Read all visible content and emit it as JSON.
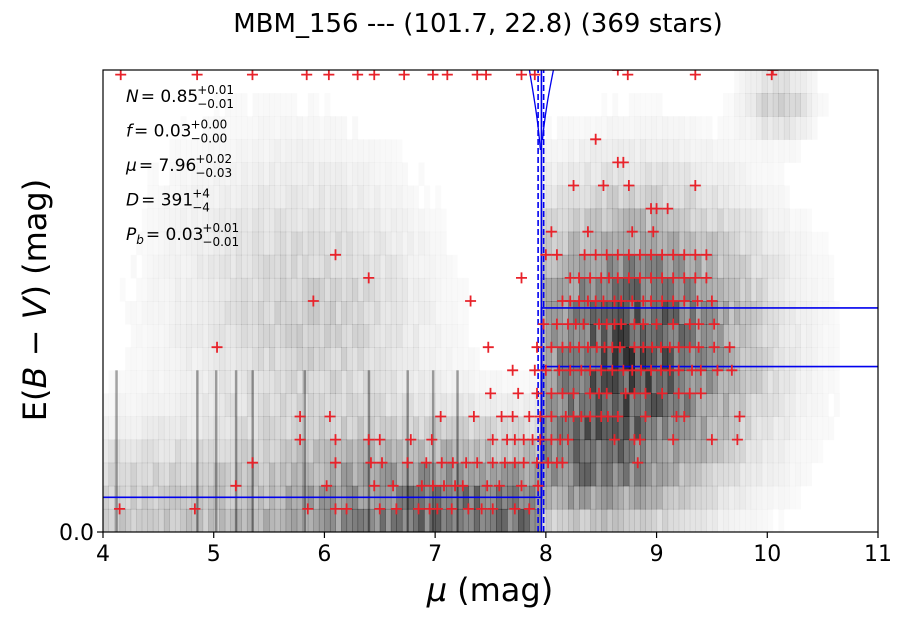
{
  "chart_data": {
    "type": "scatter",
    "title": "MBM_156 --- (101.7, 22.8) (369 stars)",
    "xlabel_symbol": "μ",
    "xlabel_unit": "(mag)",
    "ylabel_pre": "E(",
    "ylabel_b": "B",
    "ylabel_minus": " − ",
    "ylabel_v": "V",
    "ylabel_post": ") (mag)",
    "xlim": [
      4,
      11
    ],
    "ylim": [
      0,
      1
    ],
    "x_ticks": [
      "4",
      "5",
      "6",
      "7",
      "8",
      "9",
      "10",
      "11"
    ],
    "y_ticks": [
      "0.0"
    ],
    "annotations": [
      {
        "name": "N",
        "value": "= 0.85",
        "sup": "+0.01",
        "sub": "−0.01"
      },
      {
        "name": "f",
        "value": "= 0.03",
        "sup": "+0.00",
        "sub": "−0.00"
      },
      {
        "name": "μ",
        "value": "= 7.96",
        "sup": "+0.02",
        "sub": "−0.03"
      },
      {
        "name": "D",
        "value": "= 391",
        "sup": "+4",
        "sub": "−4"
      },
      {
        "name": "P",
        "name_sub": "b",
        "value": "= 0.03",
        "sup": "+0.01",
        "sub": "−0.01"
      }
    ],
    "distance_modulus": 7.96,
    "distance_modulus_lower": 7.93,
    "distance_modulus_upper": 7.98,
    "step_profile": {
      "break_x": 7.96,
      "foreground_y": 0.075,
      "background_y_lower": 0.358,
      "background_y_upper": 0.485
    },
    "marker_color": "#e8222a",
    "line_color": "#0000ee",
    "points": [
      [
        4.16,
        0.99
      ],
      [
        4.85,
        0.99
      ],
      [
        5.35,
        0.99
      ],
      [
        5.84,
        0.99
      ],
      [
        6.04,
        0.99
      ],
      [
        6.3,
        0.99
      ],
      [
        6.45,
        0.99
      ],
      [
        6.72,
        0.99
      ],
      [
        6.98,
        0.99
      ],
      [
        7.11,
        0.99
      ],
      [
        7.38,
        0.99
      ],
      [
        7.46,
        0.99
      ],
      [
        7.78,
        0.99
      ],
      [
        7.9,
        0.99
      ],
      [
        8.74,
        0.99
      ],
      [
        9.35,
        0.99
      ],
      [
        10.04,
        0.99
      ],
      [
        4.15,
        0.05
      ],
      [
        4.83,
        0.05
      ],
      [
        5.85,
        0.05
      ],
      [
        6.1,
        0.05
      ],
      [
        6.2,
        0.05
      ],
      [
        6.5,
        0.05
      ],
      [
        6.65,
        0.05
      ],
      [
        6.85,
        0.05
      ],
      [
        6.95,
        0.05
      ],
      [
        7.02,
        0.05
      ],
      [
        7.15,
        0.05
      ],
      [
        7.3,
        0.05
      ],
      [
        7.42,
        0.05
      ],
      [
        7.52,
        0.05
      ],
      [
        7.72,
        0.05
      ],
      [
        7.85,
        0.05
      ],
      [
        5.2,
        0.1
      ],
      [
        6.02,
        0.1
      ],
      [
        6.45,
        0.1
      ],
      [
        6.62,
        0.1
      ],
      [
        6.88,
        0.1
      ],
      [
        6.98,
        0.1
      ],
      [
        7.08,
        0.1
      ],
      [
        7.18,
        0.1
      ],
      [
        7.25,
        0.1
      ],
      [
        7.47,
        0.1
      ],
      [
        7.58,
        0.1
      ],
      [
        7.78,
        0.1
      ],
      [
        7.93,
        0.1
      ],
      [
        5.35,
        0.15
      ],
      [
        6.1,
        0.15
      ],
      [
        6.42,
        0.15
      ],
      [
        6.52,
        0.15
      ],
      [
        6.75,
        0.15
      ],
      [
        6.92,
        0.15
      ],
      [
        7.06,
        0.15
      ],
      [
        7.16,
        0.15
      ],
      [
        7.28,
        0.15
      ],
      [
        7.38,
        0.15
      ],
      [
        7.52,
        0.15
      ],
      [
        7.63,
        0.15
      ],
      [
        7.72,
        0.15
      ],
      [
        7.8,
        0.15
      ],
      [
        7.92,
        0.15
      ],
      [
        8.02,
        0.15
      ],
      [
        8.1,
        0.15
      ],
      [
        8.15,
        0.15
      ],
      [
        8.83,
        0.15
      ],
      [
        5.78,
        0.2
      ],
      [
        6.1,
        0.2
      ],
      [
        6.4,
        0.2
      ],
      [
        6.5,
        0.2
      ],
      [
        6.78,
        0.2
      ],
      [
        6.97,
        0.2
      ],
      [
        7.52,
        0.2
      ],
      [
        7.65,
        0.2
      ],
      [
        7.72,
        0.2
      ],
      [
        7.8,
        0.2
      ],
      [
        7.88,
        0.2
      ],
      [
        7.95,
        0.2
      ],
      [
        8.05,
        0.2
      ],
      [
        8.13,
        0.2
      ],
      [
        8.2,
        0.2
      ],
      [
        8.62,
        0.2
      ],
      [
        8.8,
        0.2
      ],
      [
        8.85,
        0.2
      ],
      [
        9.15,
        0.2
      ],
      [
        9.5,
        0.2
      ],
      [
        9.73,
        0.2
      ],
      [
        5.78,
        0.25
      ],
      [
        6.05,
        0.25
      ],
      [
        7.05,
        0.25
      ],
      [
        7.35,
        0.25
      ],
      [
        7.6,
        0.25
      ],
      [
        7.7,
        0.25
      ],
      [
        7.85,
        0.25
      ],
      [
        7.95,
        0.25
      ],
      [
        8.05,
        0.25
      ],
      [
        8.18,
        0.25
      ],
      [
        8.25,
        0.25
      ],
      [
        8.32,
        0.25
      ],
      [
        8.4,
        0.25
      ],
      [
        8.5,
        0.25
      ],
      [
        8.56,
        0.25
      ],
      [
        8.65,
        0.25
      ],
      [
        8.9,
        0.25
      ],
      [
        9.18,
        0.25
      ],
      [
        9.25,
        0.25
      ],
      [
        9.75,
        0.25
      ],
      [
        7.5,
        0.3
      ],
      [
        7.75,
        0.3
      ],
      [
        7.92,
        0.3
      ],
      [
        8.05,
        0.3
      ],
      [
        8.15,
        0.3
      ],
      [
        8.25,
        0.3
      ],
      [
        8.4,
        0.3
      ],
      [
        8.48,
        0.3
      ],
      [
        8.55,
        0.3
      ],
      [
        8.72,
        0.3
      ],
      [
        8.8,
        0.3
      ],
      [
        8.9,
        0.3
      ],
      [
        9.05,
        0.3
      ],
      [
        9.2,
        0.3
      ],
      [
        9.3,
        0.3
      ],
      [
        9.4,
        0.3
      ],
      [
        7.7,
        0.35
      ],
      [
        7.9,
        0.35
      ],
      [
        8.0,
        0.35
      ],
      [
        8.12,
        0.35
      ],
      [
        8.22,
        0.35
      ],
      [
        8.32,
        0.35
      ],
      [
        8.4,
        0.35
      ],
      [
        8.5,
        0.35
      ],
      [
        8.6,
        0.35
      ],
      [
        8.7,
        0.35
      ],
      [
        8.78,
        0.35
      ],
      [
        8.86,
        0.35
      ],
      [
        8.95,
        0.35
      ],
      [
        9.04,
        0.35
      ],
      [
        9.12,
        0.35
      ],
      [
        9.2,
        0.35
      ],
      [
        9.32,
        0.35
      ],
      [
        9.4,
        0.35
      ],
      [
        9.55,
        0.35
      ],
      [
        9.68,
        0.35
      ],
      [
        5.03,
        0.4
      ],
      [
        7.48,
        0.4
      ],
      [
        7.92,
        0.4
      ],
      [
        8.05,
        0.4
      ],
      [
        8.15,
        0.4
      ],
      [
        8.22,
        0.4
      ],
      [
        8.3,
        0.4
      ],
      [
        8.38,
        0.4
      ],
      [
        8.46,
        0.4
      ],
      [
        8.53,
        0.4
      ],
      [
        8.6,
        0.4
      ],
      [
        8.67,
        0.4
      ],
      [
        8.8,
        0.4
      ],
      [
        8.88,
        0.4
      ],
      [
        8.96,
        0.4
      ],
      [
        9.04,
        0.4
      ],
      [
        9.12,
        0.4
      ],
      [
        9.2,
        0.4
      ],
      [
        9.3,
        0.4
      ],
      [
        9.38,
        0.4
      ],
      [
        9.52,
        0.4
      ],
      [
        9.66,
        0.4
      ],
      [
        7.98,
        0.45
      ],
      [
        8.1,
        0.45
      ],
      [
        8.2,
        0.45
      ],
      [
        8.27,
        0.45
      ],
      [
        8.34,
        0.45
      ],
      [
        8.48,
        0.45
      ],
      [
        8.55,
        0.45
      ],
      [
        8.62,
        0.45
      ],
      [
        8.68,
        0.45
      ],
      [
        8.8,
        0.45
      ],
      [
        8.88,
        0.45
      ],
      [
        9.0,
        0.45
      ],
      [
        9.15,
        0.45
      ],
      [
        9.3,
        0.45
      ],
      [
        9.38,
        0.45
      ],
      [
        9.52,
        0.45
      ],
      [
        5.9,
        0.5
      ],
      [
        7.32,
        0.5
      ],
      [
        8.15,
        0.5
      ],
      [
        8.22,
        0.5
      ],
      [
        8.3,
        0.5
      ],
      [
        8.38,
        0.5
      ],
      [
        8.45,
        0.5
      ],
      [
        8.52,
        0.5
      ],
      [
        8.62,
        0.5
      ],
      [
        8.68,
        0.5
      ],
      [
        8.78,
        0.5
      ],
      [
        8.88,
        0.5
      ],
      [
        8.95,
        0.5
      ],
      [
        9.05,
        0.5
      ],
      [
        9.15,
        0.5
      ],
      [
        9.25,
        0.5
      ],
      [
        9.37,
        0.5
      ],
      [
        9.5,
        0.5
      ],
      [
        6.4,
        0.55
      ],
      [
        7.78,
        0.55
      ],
      [
        8.22,
        0.55
      ],
      [
        8.3,
        0.55
      ],
      [
        8.4,
        0.55
      ],
      [
        8.5,
        0.55
      ],
      [
        8.57,
        0.55
      ],
      [
        8.65,
        0.55
      ],
      [
        8.75,
        0.55
      ],
      [
        8.85,
        0.55
      ],
      [
        8.95,
        0.55
      ],
      [
        9.05,
        0.55
      ],
      [
        9.15,
        0.55
      ],
      [
        9.25,
        0.55
      ],
      [
        9.35,
        0.55
      ],
      [
        9.45,
        0.55
      ],
      [
        6.1,
        0.6
      ],
      [
        8.0,
        0.6
      ],
      [
        8.1,
        0.6
      ],
      [
        8.35,
        0.6
      ],
      [
        8.45,
        0.6
      ],
      [
        8.55,
        0.6
      ],
      [
        8.65,
        0.6
      ],
      [
        8.75,
        0.6
      ],
      [
        8.85,
        0.6
      ],
      [
        8.95,
        0.6
      ],
      [
        9.05,
        0.6
      ],
      [
        9.15,
        0.6
      ],
      [
        9.25,
        0.6
      ],
      [
        9.35,
        0.6
      ],
      [
        9.45,
        0.6
      ],
      [
        8.05,
        0.65
      ],
      [
        8.38,
        0.65
      ],
      [
        8.78,
        0.65
      ],
      [
        8.97,
        0.65
      ],
      [
        8.95,
        0.7
      ],
      [
        9.0,
        0.7
      ],
      [
        9.1,
        0.7
      ],
      [
        8.25,
        0.75
      ],
      [
        8.52,
        0.75
      ],
      [
        8.75,
        0.75
      ],
      [
        9.35,
        0.75
      ],
      [
        8.65,
        0.8
      ],
      [
        8.7,
        0.8
      ],
      [
        8.45,
        0.85
      ],
      [
        8.65,
        1.0
      ],
      [
        10.05,
        1.0
      ]
    ]
  }
}
